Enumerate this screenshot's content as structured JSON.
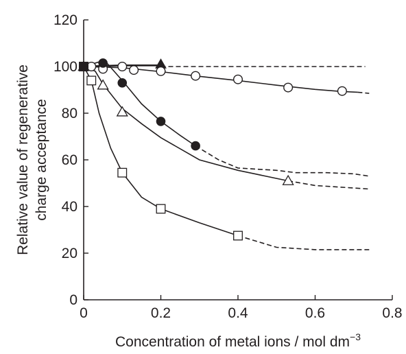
{
  "chart_data": {
    "type": "line",
    "title": "",
    "xlabel": "Concentration of metal ions / mol dm",
    "xlabel_superscript": "−3",
    "ylabel_lines": [
      "Relative value of regenerative",
      "charge acceptance"
    ],
    "xlim": [
      0,
      0.8
    ],
    "ylim": [
      0,
      120
    ],
    "x_ticks": [
      {
        "value": 0,
        "label": "0"
      },
      {
        "value": 0.2,
        "label": "0.2"
      },
      {
        "value": 0.4,
        "label": "0.4"
      },
      {
        "value": 0.6,
        "label": "0.6"
      },
      {
        "value": 0.8,
        "label": "0.8"
      }
    ],
    "y_ticks": [
      {
        "value": 0,
        "label": "0"
      },
      {
        "value": 20,
        "label": "20"
      },
      {
        "value": 40,
        "label": "40"
      },
      {
        "value": 60,
        "label": "60"
      },
      {
        "value": 80,
        "label": "80"
      },
      {
        "value": 100,
        "label": "100"
      },
      {
        "value": 120,
        "label": "120"
      }
    ],
    "grid": false,
    "legend": "none",
    "colors": {
      "ink": "#231f20",
      "background": "#ffffff"
    },
    "series": [
      {
        "marker": "filled-triangle",
        "points": [
          [
            0,
            100
          ],
          [
            0.2,
            101
          ]
        ],
        "solid": [
          [
            0,
            100
          ],
          [
            0.1,
            100.5
          ],
          [
            0.2,
            100.5
          ]
        ],
        "dashed": [
          [
            0.2,
            100
          ],
          [
            0.73,
            100
          ]
        ]
      },
      {
        "marker": "open-circle",
        "points": [
          [
            0,
            100
          ],
          [
            0.02,
            100
          ],
          [
            0.05,
            99
          ],
          [
            0.1,
            100
          ],
          [
            0.13,
            98.5
          ],
          [
            0.2,
            98
          ],
          [
            0.29,
            96
          ],
          [
            0.4,
            94.5
          ],
          [
            0.53,
            91
          ],
          [
            0.67,
            89.5
          ]
        ],
        "solid": [
          [
            0,
            100
          ],
          [
            0.1,
            99.5
          ],
          [
            0.2,
            97.8
          ],
          [
            0.3,
            95.8
          ],
          [
            0.4,
            94
          ],
          [
            0.5,
            92
          ],
          [
            0.6,
            90.2
          ],
          [
            0.67,
            89.3
          ],
          [
            0.71,
            89
          ]
        ],
        "dashed": [
          [
            0.71,
            89
          ],
          [
            0.74,
            88.5
          ]
        ]
      },
      {
        "marker": "filled-circle",
        "points": [
          [
            0,
            100
          ],
          [
            0.05,
            101.5
          ],
          [
            0.1,
            93
          ],
          [
            0.2,
            76.5
          ],
          [
            0.29,
            66
          ]
        ],
        "solid": [
          [
            0,
            100
          ],
          [
            0.02,
            101
          ],
          [
            0.04,
            102
          ],
          [
            0.06,
            101.5
          ],
          [
            0.1,
            94
          ],
          [
            0.15,
            84
          ],
          [
            0.2,
            76.5
          ],
          [
            0.25,
            70.5
          ],
          [
            0.29,
            66
          ]
        ],
        "dashed": [
          [
            0.29,
            66
          ],
          [
            0.35,
            60
          ],
          [
            0.4,
            56.5
          ],
          [
            0.5,
            55.5
          ],
          [
            0.55,
            54.5
          ],
          [
            0.63,
            54.5
          ],
          [
            0.7,
            54
          ],
          [
            0.74,
            53
          ]
        ]
      },
      {
        "marker": "open-triangle",
        "points": [
          [
            0,
            100
          ],
          [
            0.05,
            92
          ],
          [
            0.1,
            80.5
          ],
          [
            0.53,
            51
          ]
        ],
        "solid": [
          [
            0,
            100
          ],
          [
            0.03,
            98
          ],
          [
            0.05,
            92.5
          ],
          [
            0.1,
            82
          ],
          [
            0.15,
            75.5
          ],
          [
            0.2,
            69.5
          ],
          [
            0.3,
            60
          ],
          [
            0.4,
            55.5
          ],
          [
            0.53,
            51
          ]
        ],
        "dashed": [
          [
            0.53,
            51
          ],
          [
            0.6,
            49
          ],
          [
            0.74,
            47.5
          ]
        ]
      },
      {
        "marker": "open-square",
        "points": [
          [
            0,
            100
          ],
          [
            0.02,
            94
          ],
          [
            0.1,
            54.5
          ],
          [
            0.2,
            39
          ],
          [
            0.4,
            27.5
          ]
        ],
        "solid": [
          [
            0,
            100
          ],
          [
            0.02,
            94
          ],
          [
            0.04,
            80
          ],
          [
            0.07,
            65
          ],
          [
            0.1,
            54.5
          ],
          [
            0.15,
            44
          ],
          [
            0.2,
            39
          ],
          [
            0.3,
            33
          ],
          [
            0.4,
            27.5
          ]
        ],
        "dashed": [
          [
            0.4,
            27.5
          ],
          [
            0.5,
            22.5
          ],
          [
            0.6,
            21.5
          ],
          [
            0.74,
            21.5
          ]
        ]
      }
    ]
  }
}
